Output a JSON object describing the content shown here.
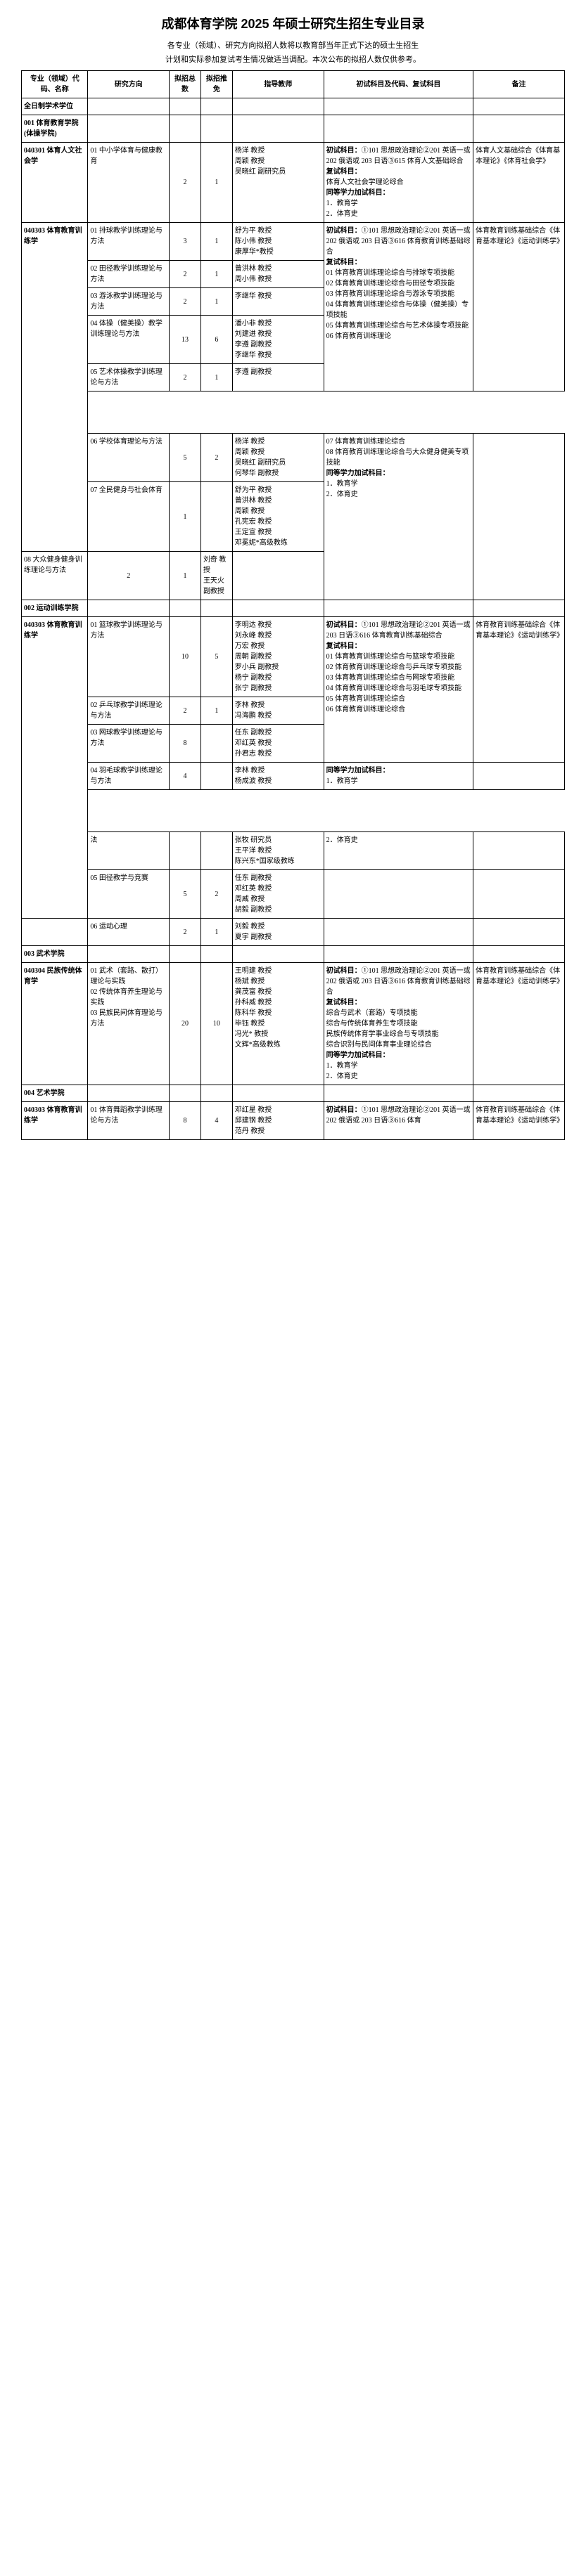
{
  "title": "成都体育学院 2025 年硕士研究生招生专业目录",
  "subtitle1": "各专业（领域）、研究方向拟招人数将以教育部当年正式下达的硕士生招生",
  "subtitle2": "计划和实际参加复试考生情况做适当调配。本次公布的拟招人数仅供参考。",
  "headers": {
    "c1": "专业（领域）代码、名称",
    "c2": "研究方向",
    "c3": "拟招总数",
    "c4": "拟招推免",
    "c5": "指导教师",
    "c6": "初试科目及代码、复试科目",
    "c7": "备注"
  },
  "row_fulltime": "全日制学术学位",
  "dept001": "001 体育教育学院(体操学院)",
  "major040301": "040301 体育人文社会学",
  "r1": {
    "dir": "01 中小学体育与健康教育",
    "n1": "2",
    "n2": "1",
    "teachers": "杨洋 教授\n周颖 教授\n吴晓红 副研究员",
    "exam": "初试科目：①101 思想政治理论②201 英语一或 202 俄语或 203 日语③615 体育人文基础综合\n复试科目：\n体育人文社会学理论综合\n同等学力加试科目：\n1．教育学\n2．体育史",
    "note": "体育人文基础综合《体育基本理论》《体育社会学》"
  },
  "major040303": "040303 体育教育训练学",
  "r2": {
    "dir": "01 排球教学训练理论与方法",
    "n1": "3",
    "n2": "1",
    "teachers": "舒为平 教授\n陈小伟 教授\n康厚华*教授",
    "exam": "初试科目：①101 思想政治理论②201 英语一或 202 俄语或 203 日语③616 体育教育训练基础综合\n复试科目：\n01 体育教育训练理论综合与排球专项技能\n02 体育教育训练理论综合与田径专项技能\n03 体育教育训练理论综合与游泳专项技能\n04 体育教育训练理论综合与体操（健美操）专项技能\n05 体育教育训练理论综合与艺术体操专项技能\n06 体育教育训练理论",
    "note": "体育教育训练基础综合《体育基本理论》《运动训练学》"
  },
  "r3": {
    "dir": "02 田径教学训练理论与方法",
    "n1": "2",
    "n2": "1",
    "teachers": "曾洪林 教授\n周小伟 教授"
  },
  "r4": {
    "dir": "03 游泳教学训练理论与方法",
    "n1": "2",
    "n2": "1",
    "teachers": "李继华 教授"
  },
  "r5": {
    "dir": "04 体操（健美操）教学训练理论与方法",
    "n1": "13",
    "n2": "6",
    "teachers": "潘小非 教授\n刘建进 教授\n李遵 副教授\n李继华 教授"
  },
  "r6": {
    "dir": "05 艺术体操教学训练理论与方法",
    "n1": "2",
    "n2": "1",
    "teachers": "李遵 副教授"
  },
  "r7": {
    "dir": "06 学校体育理论与方法",
    "n1": "5",
    "n2": "2",
    "teachers": "杨洋 教授\n周颖 教授\n吴晓红 副研究员\n何琴华 副教授",
    "exam": "07 体育教育训练理论综合\n08 体育教育训练理论综合与大众健身健美专项技能\n同等学力加试科目：\n1．教育学\n2．体育史"
  },
  "r8": {
    "dir": "07 全民健身与社会体育",
    "n1": "1",
    "n2": "",
    "teachers": "舒为平 教授\n曾洪林 教授\n周颖 教授\n孔宪宏 教授\n王定宣 教授\n邓冕妮*高级教练"
  },
  "r9": {
    "dir": "08 大众健身健身训练理论与方法",
    "n1": "2",
    "n2": "1",
    "teachers": "刘奇 教授\n王天火 副教授"
  },
  "dept002": "002 运动训练学院",
  "major040303b": "040303 体育教育训练学",
  "r10": {
    "dir": "01 篮球教学训练理论与方法",
    "n1": "10",
    "n2": "5",
    "teachers": "李明达 教授\n刘永峰 教授\n万宏 教授\n周朝 副教授\n罗小兵 副教授\n杨宁 副教授\n张宁 副教授",
    "exam": "初试科目：①101 思想政治理论②201 英语一或 203 日语③616 体育教育训练基础综合\n复试科目：\n01 体育教育训练理论综合与篮球专项技能\n02 体育教育训练理论综合与乒乓球专项技能\n03 体育教育训练理论综合与网球专项技能\n04 体育教育训练理论综合与羽毛球专项技能\n05 体育教育训练理论综合\n06 体育教育训练理论综合",
    "note": "体育教育训练基础综合《体育基本理论》《运动训练学》"
  },
  "r11": {
    "dir": "02 乒乓球教学训练理论与方法",
    "n1": "2",
    "n2": "1",
    "teachers": "李林 教授\n冯海鹏 教授"
  },
  "r12": {
    "dir": "03 网球教学训练理论与方法",
    "n1": "8",
    "n2": "",
    "teachers": "任东 副教授\n邓红英 教授\n孙君志 教授"
  },
  "r13": {
    "dir": "04 羽毛球教学训练理论与方法",
    "n1": "4",
    "n2": "",
    "teachers": "李林 教授\n杨成波 教授",
    "exam": "同等学力加试科目：\n1．教育学"
  },
  "r14": {
    "dir": "法",
    "teachers": "张牧 研究员\n王平洋 教授\n陈兴东*国家级教练",
    "exam": "2．体育史"
  },
  "r15": {
    "dir": "05 田径教学与竞赛",
    "n1": "5",
    "n2": "2",
    "teachers": "任东 副教授\n邓红英 教授\n周威 教授\n胡毅 副教授"
  },
  "r16": {
    "dir": "06 运动心理",
    "n1": "2",
    "n2": "1",
    "teachers": "刘毅 教授\n夏宇 副教授"
  },
  "dept003": "003 武术学院",
  "major040304": "040304 民族传统体育学",
  "r17": {
    "dir": "01 武术（套路、散打）理论与实践\n02 传统体育养生理论与实践\n03 民族民间体育理论与方法",
    "n1": "20",
    "n2": "10",
    "teachers": "王明建 教授\n杨斌 教授\n龚茂富 教授\n孙科威 教授\n陈科华 教授\n毕钰 教授\n冯光* 教授\n文辉*高级教练",
    "exam": "初试科目：①101 思想政治理论②201 英语一或 202 俄语或 203 日语③616 体育教育训练基础综合\n复试科目：\n综合与武术（套路）专项技能\n综合与传统体育养生专项技能\n民族传统体育学事业综合与专项技能\n综合识别与民间体育事业理论综合\n同等学力加试科目：\n1．教育学\n2．体育史",
    "note": "体育教育训练基础综合《体育基本理论》《运动训练学》"
  },
  "dept004": "004 艺术学院",
  "major040303c": "040303 体育教育训练学",
  "r18": {
    "dir": "01 体育舞蹈教学训练理论与方法",
    "n1": "8",
    "n2": "4",
    "teachers": "邓红星 教授\n邱建钢 教授\n范丹 教授",
    "exam": "初试科目：①101 思想政治理论②201 英语一或 202 俄语或 203 日语③616 体育",
    "note": "体育教育训练基础综合《体育基本理论》《运动训练学》"
  }
}
